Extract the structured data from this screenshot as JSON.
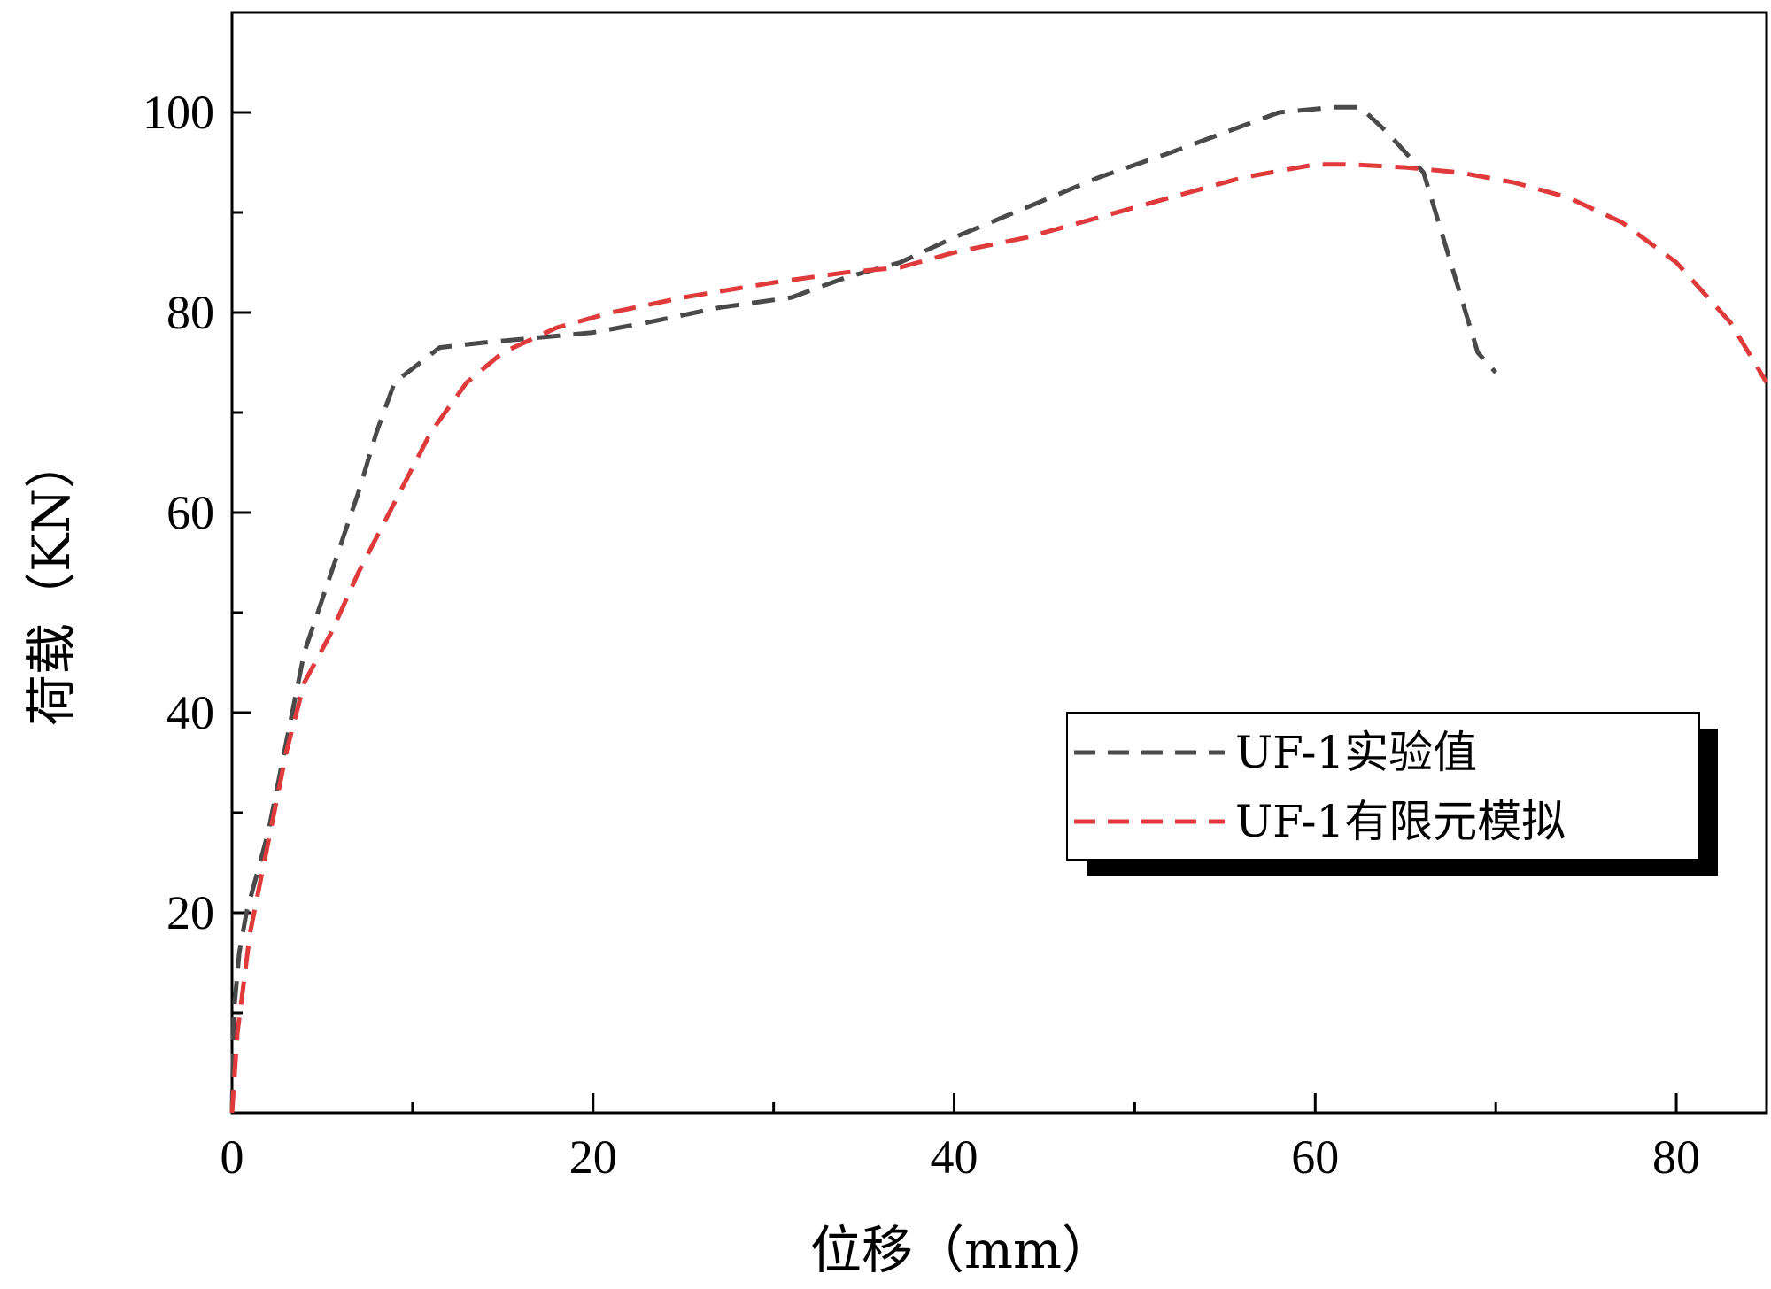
{
  "chart_data": {
    "type": "line",
    "xlabel": "位移（mm）",
    "ylabel": "荷载（KN）",
    "xlim": [
      0,
      85
    ],
    "ylim": [
      0,
      110
    ],
    "x_ticks": [
      0,
      20,
      40,
      60,
      80
    ],
    "x_minor_ticks": [
      10,
      30,
      50,
      70
    ],
    "y_ticks": [
      20,
      40,
      60,
      80,
      100
    ],
    "y_minor_ticks": [
      10,
      30,
      50,
      70,
      90
    ],
    "grid": false,
    "legend_position": "lower-right",
    "series": [
      {
        "name": "UF-1实验值",
        "color": "#4a4a4a",
        "dash": "dashed",
        "points": [
          [
            0,
            0
          ],
          [
            0.1,
            10
          ],
          [
            0.4,
            16
          ],
          [
            0.8,
            20
          ],
          [
            2,
            28
          ],
          [
            3,
            37
          ],
          [
            4,
            46
          ],
          [
            5.5,
            54
          ],
          [
            7,
            62
          ],
          [
            8,
            68
          ],
          [
            9,
            73
          ],
          [
            11.5,
            76.5
          ],
          [
            14,
            77
          ],
          [
            17,
            77.5
          ],
          [
            20,
            78
          ],
          [
            23,
            79
          ],
          [
            27,
            80.5
          ],
          [
            31,
            81.5
          ],
          [
            34,
            83.5
          ],
          [
            37,
            85
          ],
          [
            40,
            87.5
          ],
          [
            44,
            90.5
          ],
          [
            48,
            93.5
          ],
          [
            52,
            96
          ],
          [
            55,
            98
          ],
          [
            58,
            100
          ],
          [
            61,
            100.5
          ],
          [
            62.5,
            100.5
          ],
          [
            64,
            98
          ],
          [
            66,
            94
          ],
          [
            67,
            88
          ],
          [
            68,
            82
          ],
          [
            69,
            76
          ],
          [
            70,
            74
          ]
        ]
      },
      {
        "name": "UF-1有限元模拟",
        "color": "#e03a3a",
        "dash": "dashed",
        "points": [
          [
            0,
            0
          ],
          [
            0.3,
            8
          ],
          [
            1,
            18
          ],
          [
            2,
            27
          ],
          [
            3,
            36
          ],
          [
            4,
            43
          ],
          [
            5.5,
            48
          ],
          [
            7,
            54
          ],
          [
            9,
            61
          ],
          [
            11,
            68
          ],
          [
            13,
            73
          ],
          [
            15,
            76
          ],
          [
            18,
            78.5
          ],
          [
            21,
            80
          ],
          [
            25,
            81.5
          ],
          [
            30,
            83
          ],
          [
            34,
            84
          ],
          [
            37,
            84.5
          ],
          [
            40,
            86
          ],
          [
            44,
            87.5
          ],
          [
            48,
            89.5
          ],
          [
            52,
            91.5
          ],
          [
            56,
            93.5
          ],
          [
            60,
            94.8
          ],
          [
            62,
            94.8
          ],
          [
            65,
            94.5
          ],
          [
            68,
            94
          ],
          [
            71,
            93
          ],
          [
            74,
            91.5
          ],
          [
            77,
            89
          ],
          [
            80,
            85
          ],
          [
            83,
            79
          ],
          [
            85,
            73
          ]
        ]
      }
    ]
  }
}
